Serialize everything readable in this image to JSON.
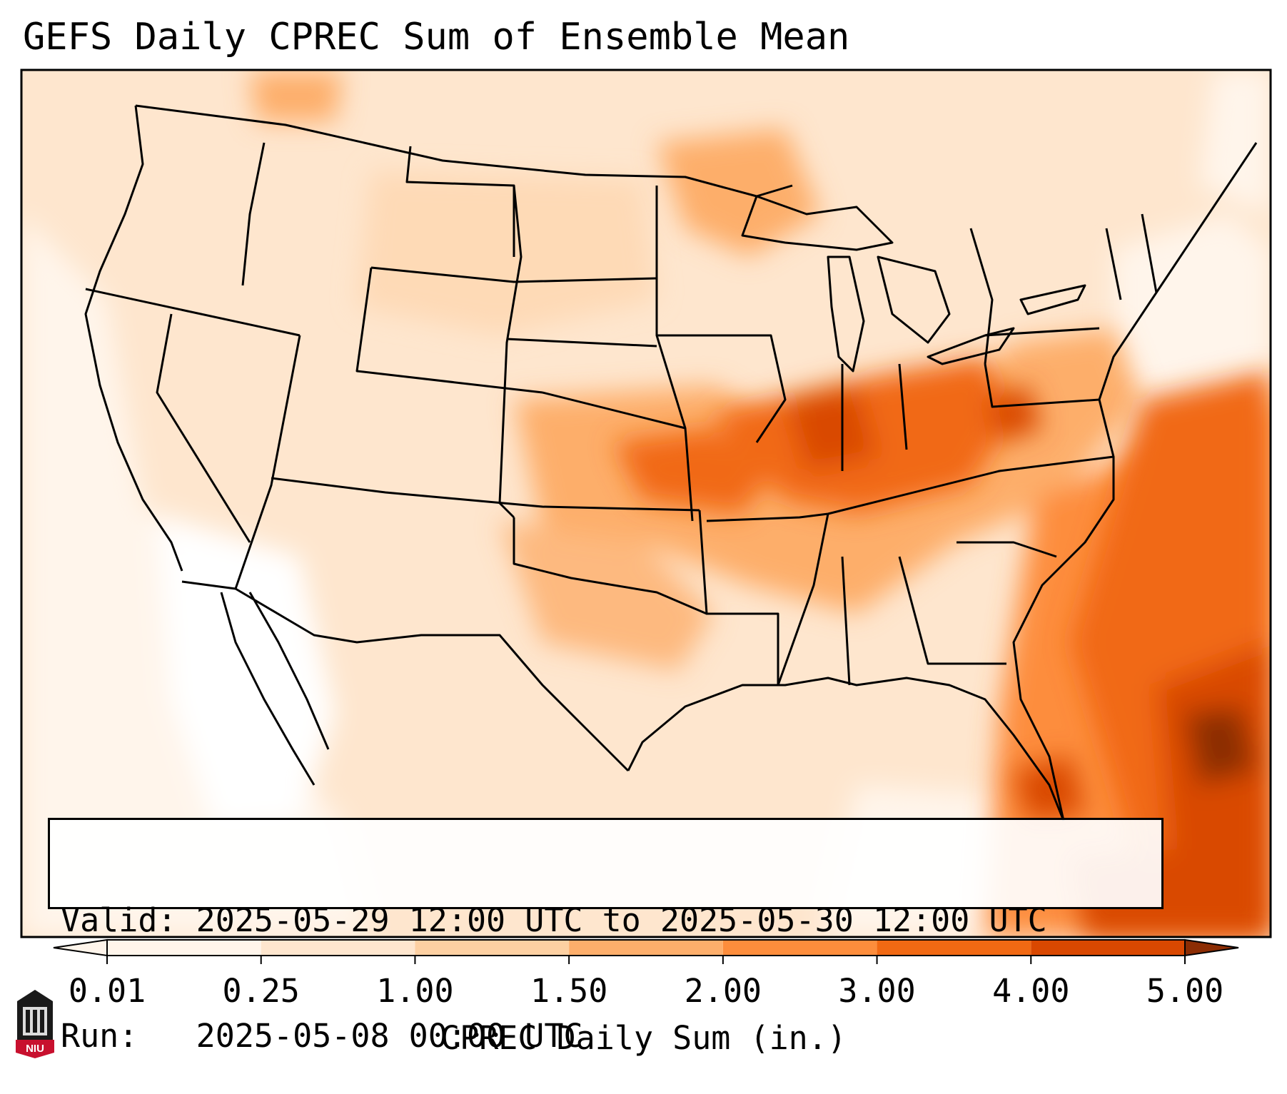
{
  "title": "GEFS Daily CPREC Sum of Ensemble Mean",
  "info": {
    "valid_label": "Valid:",
    "valid_value": "2025-05-29 12:00 UTC to 2025-05-30 12:00 UTC",
    "run_label": "Run:",
    "run_value": "2025-05-08 00:00 UTC"
  },
  "colorbar": {
    "label": "CPREC Daily Sum (in.)",
    "ticks": [
      "0.01",
      "0.25",
      "1.00",
      "1.50",
      "2.00",
      "3.00",
      "4.00",
      "5.00"
    ],
    "colors": [
      "#fff5eb",
      "#fee6ce",
      "#fdd0a2",
      "#fdae6b",
      "#fd8d3c",
      "#f16913",
      "#d94801",
      "#8c2d04"
    ],
    "extend": "both"
  },
  "map": {
    "region": "Continental United States",
    "colors": {
      "background": "#fee6ce",
      "ocean_lowprecip": "#fff5eb",
      "borders": "#000000",
      "frame": "#000000"
    }
  },
  "logo": {
    "text": "NIU",
    "color": "#c8102e"
  }
}
